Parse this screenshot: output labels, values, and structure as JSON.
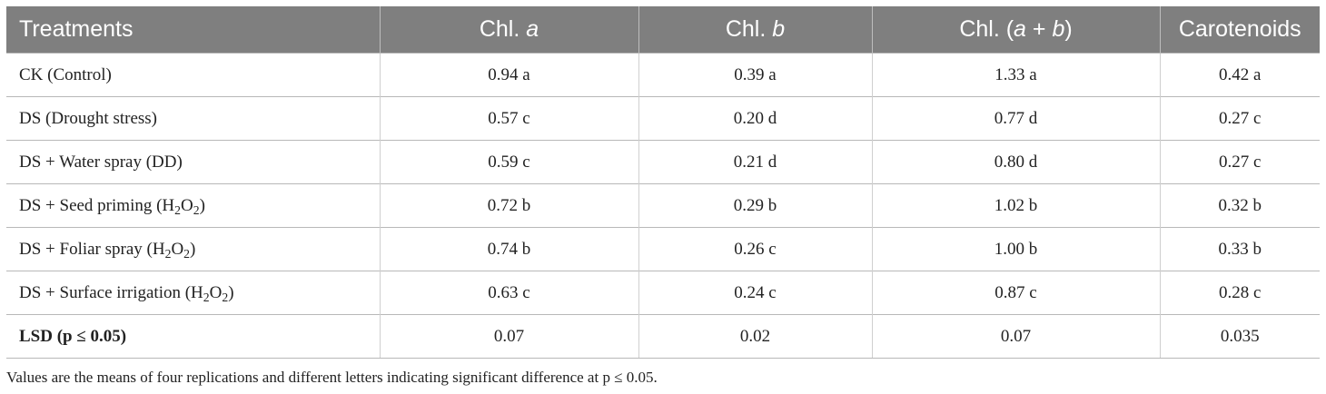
{
  "table": {
    "headers": {
      "treatments": "Treatments",
      "chl_a_prefix": "Chl. ",
      "chl_a_italic": "a",
      "chl_b_prefix": "Chl. ",
      "chl_b_italic": "b",
      "chl_ab_prefix": "Chl. (",
      "chl_ab_a": "a",
      "chl_ab_plus": " + ",
      "chl_ab_b": "b",
      "chl_ab_suffix": ")",
      "carotenoids": "Carotenoids"
    },
    "rows": [
      {
        "name": "CK (Control)",
        "chl_a": "0.94 a",
        "chl_b": "0.39 a",
        "chl_ab": "1.33 a",
        "car": "0.42 a"
      },
      {
        "name": "DS (Drought stress)",
        "chl_a": "0.57 c",
        "chl_b": "0.20 d",
        "chl_ab": "0.77 d",
        "car": "0.27 c"
      },
      {
        "name": "DS + Water spray (DD)",
        "chl_a": "0.59 c",
        "chl_b": "0.21 d",
        "chl_ab": "0.80 d",
        "car": "0.27 c"
      },
      {
        "name_pre": "DS + Seed priming (H",
        "sub1": "2",
        "mid": "O",
        "sub2": "2",
        "post": ")",
        "chl_a": "0.72 b",
        "chl_b": "0.29 b",
        "chl_ab": "1.02 b",
        "car": "0.32 b"
      },
      {
        "name_pre": "DS + Foliar spray (H",
        "sub1": "2",
        "mid": "O",
        "sub2": "2",
        "post": ")",
        "chl_a": "0.74 b",
        "chl_b": "0.26 c",
        "chl_ab": "1.00 b",
        "car": "0.33 b"
      },
      {
        "name_pre": "DS + Surface irrigation (H",
        "sub1": "2",
        "mid": "O",
        "sub2": "2",
        "post": ")",
        "chl_a": "0.63 c",
        "chl_b": "0.24 c",
        "chl_ab": "0.87 c",
        "car": "0.28 c"
      },
      {
        "name": "LSD (p ≤ 0.05)",
        "chl_a": "0.07",
        "chl_b": "0.02",
        "chl_ab": "0.07",
        "car": "0.035"
      }
    ]
  },
  "footnote": "Values are the means of four replications and different letters indicating significant difference at p ≤ 0.05."
}
